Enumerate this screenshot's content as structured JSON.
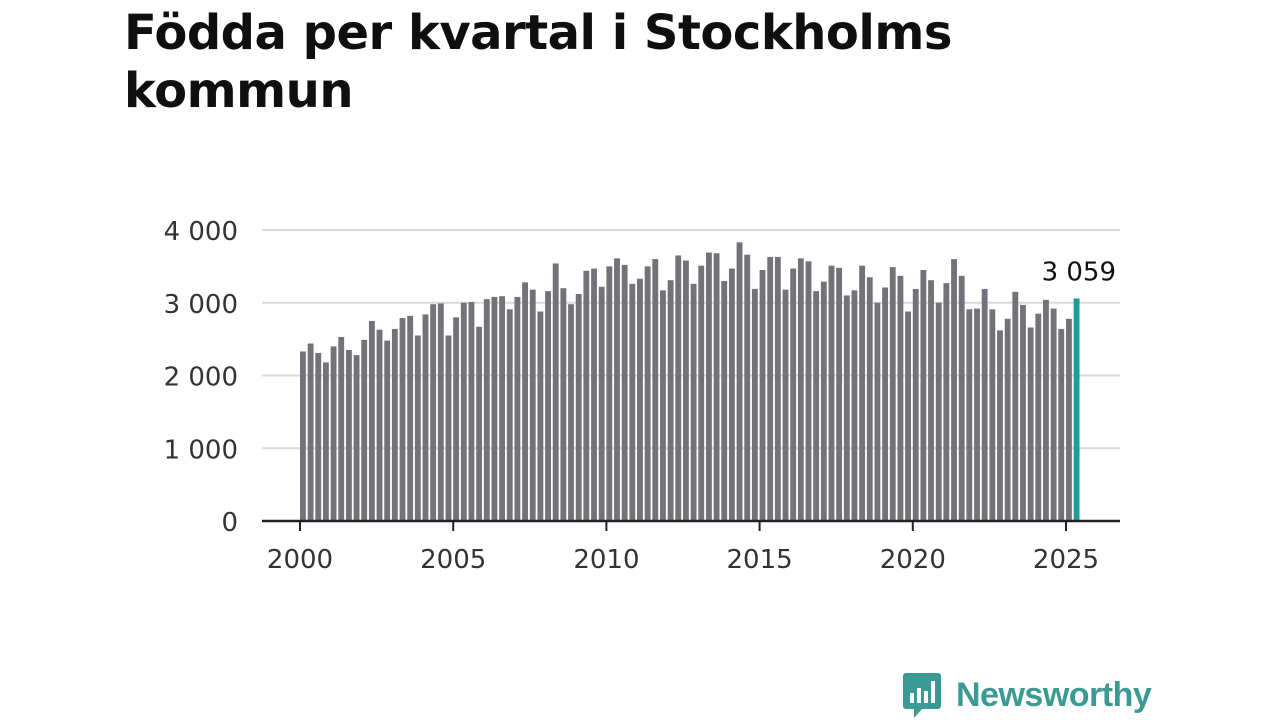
{
  "title": "Födda per kvartal i Stockholms kommun",
  "brand": {
    "name": "Newsworthy",
    "color": "#3b9a93"
  },
  "colors": {
    "bar": "#737278",
    "highlight": "#1d9e94",
    "grid": "#d9d9d9",
    "axis": "#222222"
  },
  "chart_data": {
    "type": "bar",
    "title": "Födda per kvartal i Stockholms kommun",
    "xlabel": "",
    "ylabel": "",
    "ylim": [
      0,
      4000
    ],
    "yticks": [
      0,
      1000,
      2000,
      3000,
      4000
    ],
    "ytick_labels": [
      "0",
      "1 000",
      "2 000",
      "3 000",
      "4 000"
    ],
    "xticks": [
      2000,
      2005,
      2010,
      2015,
      2020,
      2025
    ],
    "xtick_labels": [
      "2000",
      "2005",
      "2010",
      "2015",
      "2020",
      "2025"
    ],
    "grid": true,
    "start_year": 2000,
    "start_quarter": 1,
    "highlight_last": true,
    "last_value_label": "3 059",
    "values": [
      2330,
      2440,
      2310,
      2180,
      2400,
      2530,
      2350,
      2280,
      2490,
      2750,
      2630,
      2480,
      2640,
      2790,
      2820,
      2550,
      2840,
      2980,
      2990,
      2550,
      2800,
      3000,
      3010,
      2670,
      3050,
      3080,
      3090,
      2910,
      3080,
      3280,
      3180,
      2880,
      3160,
      3540,
      3200,
      2980,
      3120,
      3440,
      3470,
      3220,
      3500,
      3610,
      3520,
      3260,
      3330,
      3500,
      3600,
      3170,
      3310,
      3650,
      3580,
      3260,
      3510,
      3690,
      3680,
      3300,
      3470,
      3830,
      3660,
      3190,
      3450,
      3630,
      3630,
      3180,
      3470,
      3610,
      3570,
      3160,
      3290,
      3510,
      3480,
      3100,
      3170,
      3510,
      3350,
      3000,
      3210,
      3490,
      3370,
      2880,
      3190,
      3450,
      3310,
      3000,
      3270,
      3600,
      3370,
      2910,
      2920,
      3190,
      2910,
      2620,
      2780,
      3150,
      2970,
      2660,
      2850,
      3040,
      2920,
      2640,
      2780,
      3059
    ]
  }
}
